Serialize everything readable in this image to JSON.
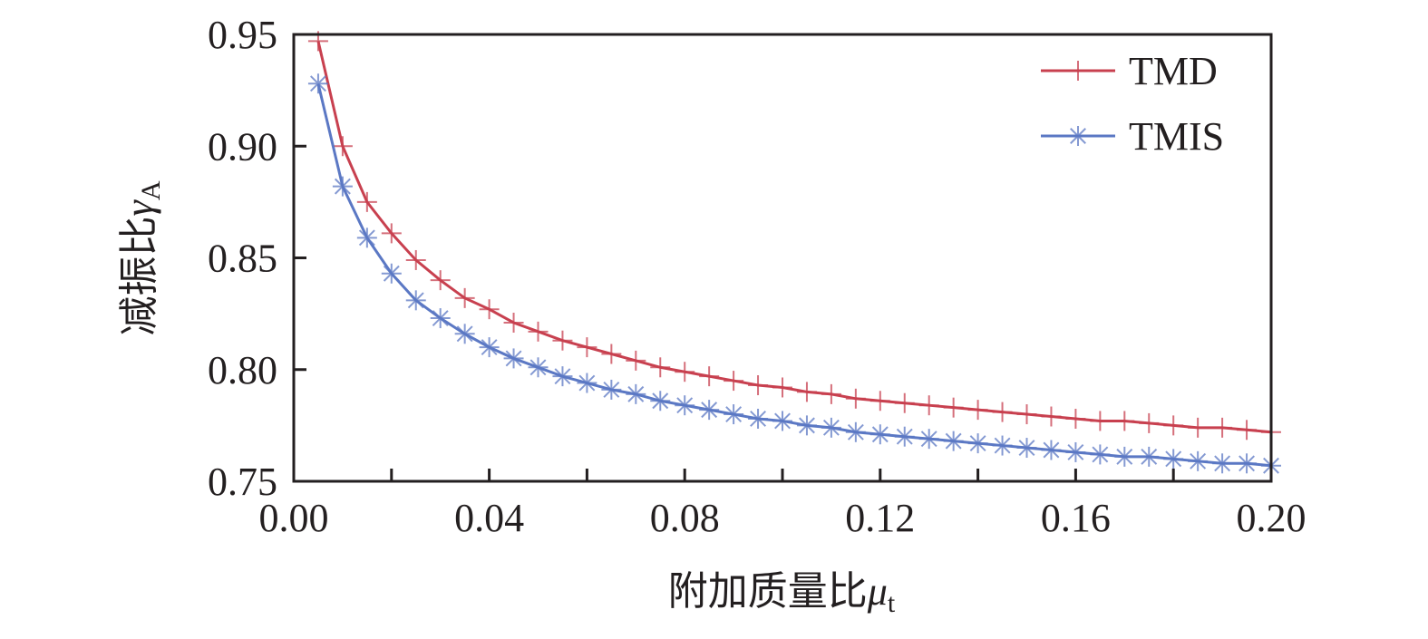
{
  "chart_data": {
    "type": "line",
    "xlabel": "附加质量比",
    "xlabel_symbol": "μ",
    "xlabel_sub": "t",
    "ylabel": "减振比",
    "ylabel_symbol": "γ",
    "ylabel_sub": "A",
    "xlim": [
      0,
      0.2
    ],
    "ylim": [
      0.75,
      0.95
    ],
    "xticks": [
      "0.00",
      "0.04",
      "0.08",
      "0.12",
      "0.16",
      "0.20"
    ],
    "yticks": [
      "0.75",
      "0.80",
      "0.85",
      "0.90",
      "0.95"
    ],
    "grid": false,
    "legend_position": "top-right",
    "x": [
      0.005,
      0.01,
      0.015,
      0.02,
      0.025,
      0.03,
      0.035,
      0.04,
      0.045,
      0.05,
      0.055,
      0.06,
      0.065,
      0.07,
      0.075,
      0.08,
      0.085,
      0.09,
      0.095,
      0.1,
      0.105,
      0.11,
      0.115,
      0.12,
      0.125,
      0.13,
      0.135,
      0.14,
      0.145,
      0.15,
      0.155,
      0.16,
      0.165,
      0.17,
      0.175,
      0.18,
      0.185,
      0.19,
      0.195,
      0.2
    ],
    "series": [
      {
        "name": "TMD",
        "color": "#c8404f",
        "marker": "plus",
        "values": [
          0.947,
          0.9,
          0.875,
          0.861,
          0.849,
          0.84,
          0.832,
          0.827,
          0.821,
          0.817,
          0.813,
          0.81,
          0.807,
          0.804,
          0.801,
          0.799,
          0.797,
          0.795,
          0.793,
          0.792,
          0.79,
          0.789,
          0.787,
          0.786,
          0.785,
          0.784,
          0.783,
          0.782,
          0.781,
          0.78,
          0.779,
          0.778,
          0.777,
          0.777,
          0.776,
          0.775,
          0.774,
          0.774,
          0.773,
          0.772
        ]
      },
      {
        "name": "TMIS",
        "color": "#5b78c4",
        "marker": "asterisk",
        "values": [
          0.928,
          0.882,
          0.859,
          0.843,
          0.831,
          0.823,
          0.816,
          0.81,
          0.805,
          0.801,
          0.797,
          0.794,
          0.791,
          0.789,
          0.786,
          0.784,
          0.782,
          0.78,
          0.778,
          0.777,
          0.775,
          0.774,
          0.772,
          0.771,
          0.77,
          0.769,
          0.768,
          0.767,
          0.766,
          0.765,
          0.764,
          0.763,
          0.762,
          0.761,
          0.761,
          0.76,
          0.759,
          0.758,
          0.758,
          0.757
        ]
      }
    ]
  }
}
